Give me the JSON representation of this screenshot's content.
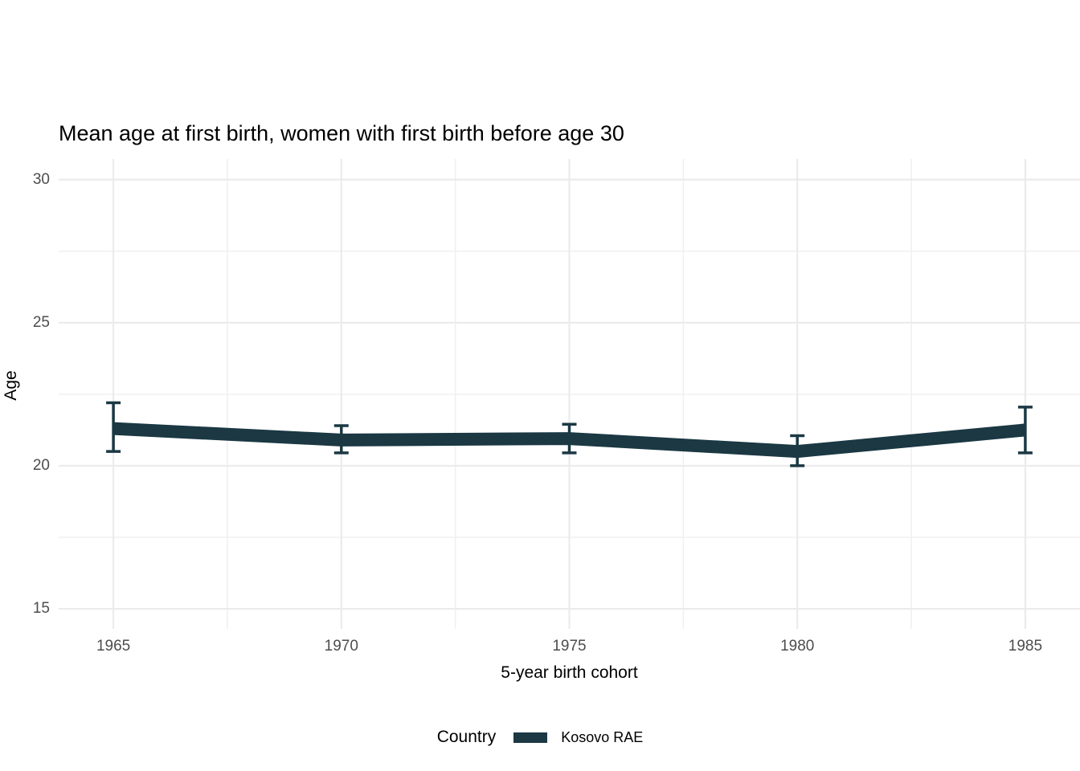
{
  "colors": {
    "background": "#ffffff",
    "series": "#1b3843",
    "grid_major": "#ebebeb",
    "grid_minor": "#f0f0f0",
    "tick_label": "#4d4d4d",
    "text": "#000000"
  },
  "legend": {
    "title": "Country",
    "items": [
      {
        "label": "Kosovo RAE",
        "color": "#1b3843"
      }
    ]
  },
  "chart_data": {
    "type": "line",
    "title": "Mean age at first birth, women with first birth before age 30",
    "xlabel": "5-year birth cohort",
    "ylabel": "Age",
    "x": [
      1965,
      1970,
      1975,
      1980,
      1985
    ],
    "series": [
      {
        "name": "Kosovo RAE",
        "color": "#1b3843",
        "values": [
          21.3,
          20.9,
          20.95,
          20.5,
          21.25
        ],
        "ci_low": [
          20.5,
          20.45,
          20.45,
          20.0,
          20.45
        ],
        "ci_high": [
          22.2,
          21.4,
          21.45,
          21.05,
          22.05
        ]
      }
    ],
    "x_ticks": [
      1965,
      1970,
      1975,
      1980,
      1985
    ],
    "x_minor": [
      1967.5,
      1972.5,
      1977.5,
      1982.5
    ],
    "y_ticks": [
      15,
      20,
      25,
      30
    ],
    "y_minor": [
      17.5,
      22.5,
      27.5
    ],
    "xlim": [
      1963.8,
      1986.2
    ],
    "ylim": [
      14.3,
      30.72
    ],
    "grid": true,
    "error_bars": true,
    "legend_position": "bottom",
    "legend_title": "Country"
  }
}
